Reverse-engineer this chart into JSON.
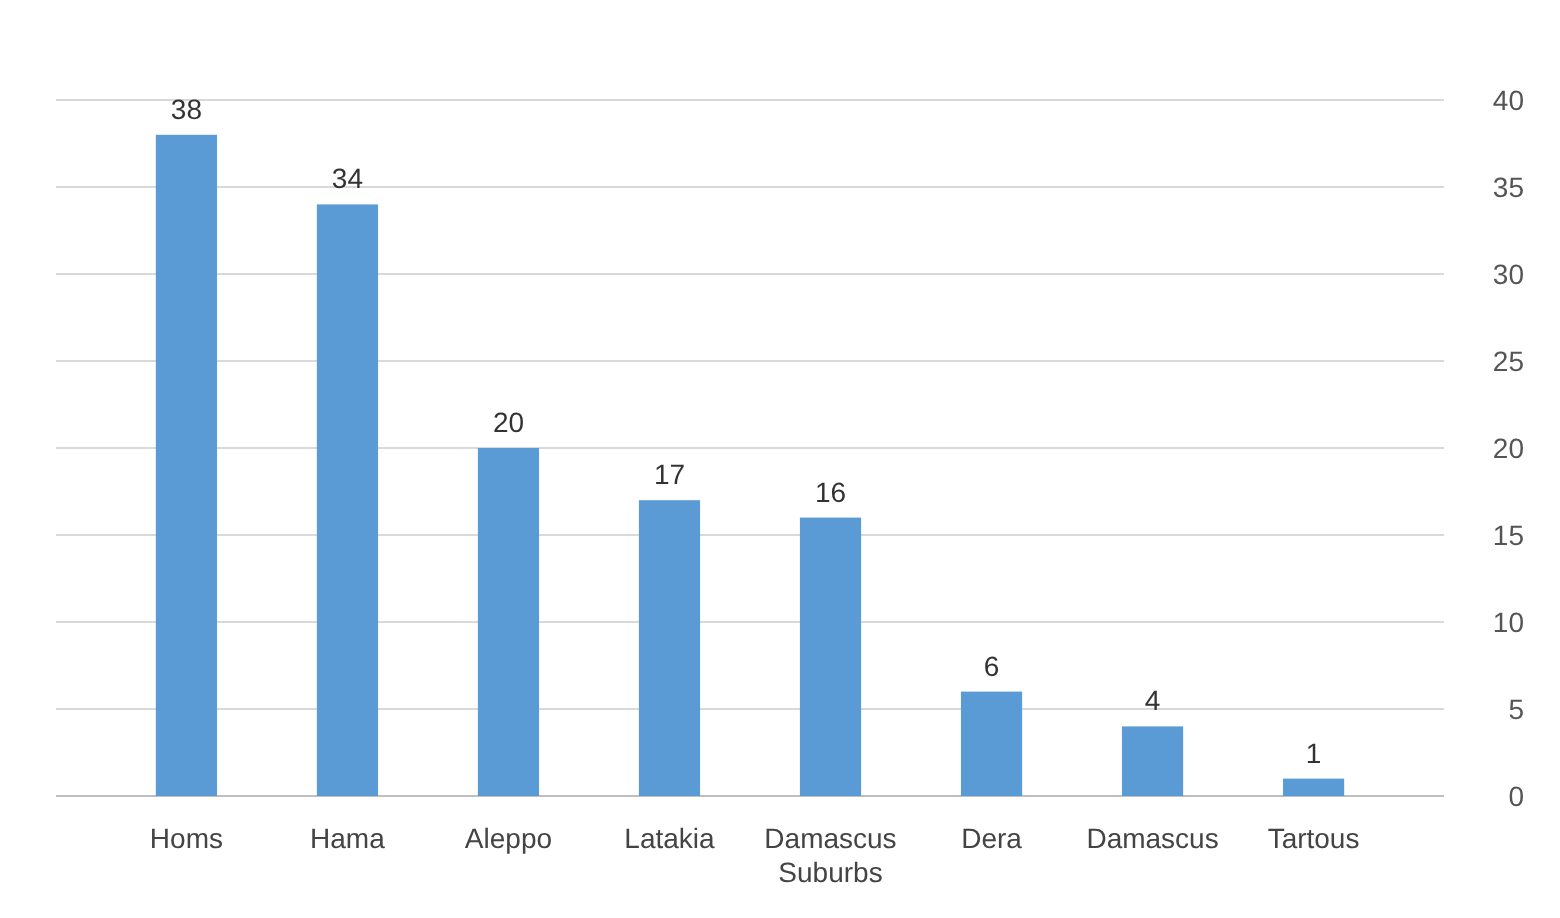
{
  "chart_data": {
    "type": "bar",
    "categories": [
      "Homs",
      "Hama",
      "Aleppo",
      "Latakia",
      "Damascus Suburbs",
      "Dera",
      "Damascus",
      "Tartous"
    ],
    "values": [
      38,
      34,
      20,
      17,
      16,
      6,
      4,
      1
    ],
    "color": "#5b9bd5",
    "data_labels": true,
    "grid": "y",
    "ylim": [
      0,
      40
    ],
    "yticks": [
      0,
      5,
      10,
      15,
      20,
      25,
      30,
      35,
      40
    ]
  }
}
